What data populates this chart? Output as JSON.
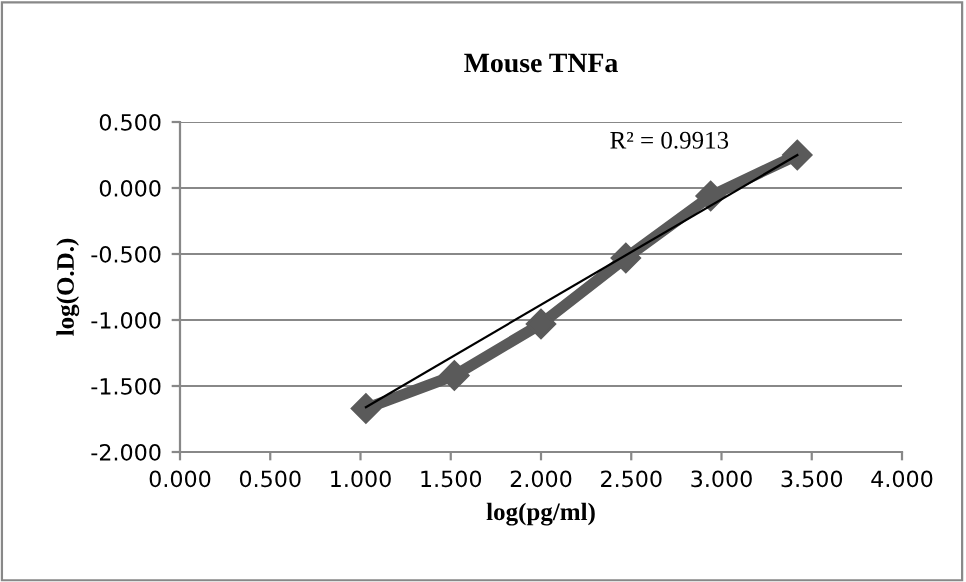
{
  "chart_data": {
    "type": "line",
    "title": "Mouse TNFa",
    "xlabel": "log(pg/ml)",
    "ylabel": "log(O.D.)",
    "series": [
      {
        "color": "#5a5a5a",
        "marker": "diamond",
        "x": [
          1.03,
          1.52,
          2.0,
          2.47,
          2.94,
          3.42
        ],
        "values": [
          -1.67,
          -1.42,
          -1.03,
          -0.53,
          -0.06,
          0.25
        ]
      },
      {
        "color": "#000000",
        "marker": "none",
        "x": [
          1.03,
          3.42
        ],
        "values": [
          -1.66,
          0.25
        ]
      }
    ],
    "annotations": [
      "R² = 0.9913"
    ],
    "xlim": [
      0,
      4
    ],
    "xticks": [
      {
        "value": 0,
        "label": "0.000"
      },
      {
        "value": 0.5,
        "label": "0.500"
      },
      {
        "value": 1,
        "label": "1.000"
      },
      {
        "value": 1.5,
        "label": "1.500"
      },
      {
        "value": 2,
        "label": "2.000"
      },
      {
        "value": 2.5,
        "label": "2.500"
      },
      {
        "value": 3,
        "label": "3.000"
      },
      {
        "value": 3.5,
        "label": "3.500"
      },
      {
        "value": 4,
        "label": "4.000"
      }
    ],
    "ylim": [
      -2,
      0.5
    ],
    "yticks": [
      {
        "value": -2,
        "label": "-2.000"
      },
      {
        "value": -1.5,
        "label": "-1.500"
      },
      {
        "value": -1,
        "label": "-1.000"
      },
      {
        "value": -0.5,
        "label": "-0.500"
      },
      {
        "value": 0,
        "label": "0.000"
      },
      {
        "value": 0.5,
        "label": "0.500"
      }
    ],
    "grid": "y",
    "legend": false
  }
}
